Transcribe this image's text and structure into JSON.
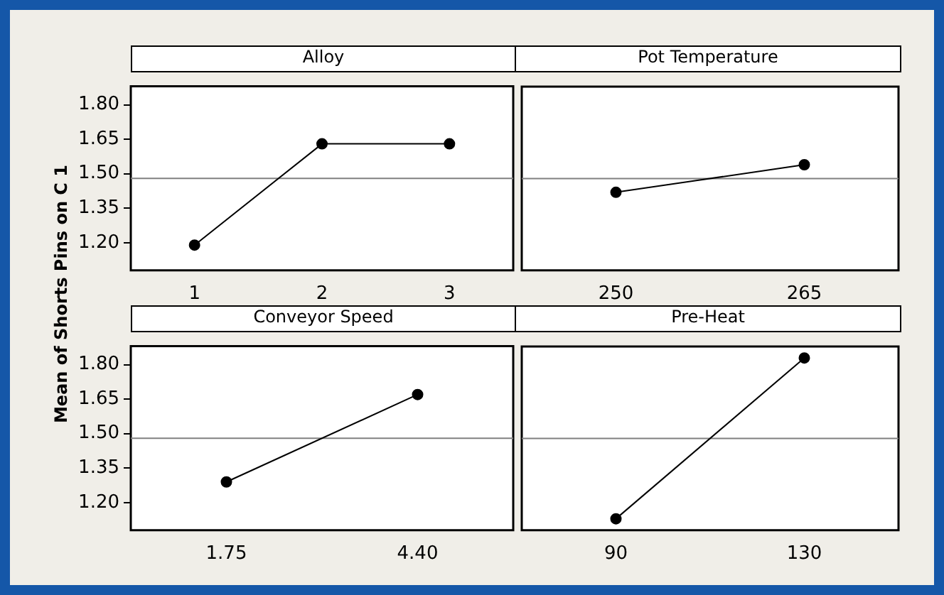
{
  "chart_data": [
    {
      "type": "line",
      "title": "Alloy",
      "ylabel": "Mean of Shorts Pins on C 1",
      "categories": [
        "1",
        "2",
        "3"
      ],
      "values": [
        1.19,
        1.63,
        1.63
      ],
      "color": "#000000",
      "marker": "circle",
      "ylim": [
        1.08,
        1.88
      ],
      "yticks": [
        {
          "value": 1.2,
          "label": "1.20"
        },
        {
          "value": 1.35,
          "label": "1.35"
        },
        {
          "value": 1.5,
          "label": "1.50"
        },
        {
          "value": 1.65,
          "label": "1.65"
        },
        {
          "value": 1.8,
          "label": "1.80"
        }
      ],
      "ref_lines": [
        {
          "axis": "y",
          "value": 1.48,
          "color": "#808080"
        }
      ],
      "grid": false
    },
    {
      "type": "line",
      "title": "Pot Temperature",
      "categories": [
        "250",
        "265"
      ],
      "values": [
        1.42,
        1.54
      ],
      "color": "#000000",
      "marker": "circle",
      "ylim": [
        1.08,
        1.88
      ],
      "tick_labels": "x",
      "ref_lines": [
        {
          "axis": "y",
          "value": 1.48,
          "color": "#808080"
        }
      ],
      "grid": false
    },
    {
      "type": "line",
      "title": "Conveyor Speed",
      "categories": [
        "1.75",
        "4.40"
      ],
      "values": [
        1.29,
        1.67
      ],
      "color": "#000000",
      "marker": "circle",
      "ylim": [
        1.08,
        1.88
      ],
      "yticks": [
        {
          "value": 1.2,
          "label": "1.20"
        },
        {
          "value": 1.35,
          "label": "1.35"
        },
        {
          "value": 1.5,
          "label": "1.50"
        },
        {
          "value": 1.65,
          "label": "1.65"
        },
        {
          "value": 1.8,
          "label": "1.80"
        }
      ],
      "ref_lines": [
        {
          "axis": "y",
          "value": 1.48,
          "color": "#808080"
        }
      ],
      "grid": false
    },
    {
      "type": "line",
      "title": "Pre-Heat",
      "categories": [
        "90",
        "130"
      ],
      "values": [
        1.13,
        1.83
      ],
      "color": "#000000",
      "marker": "circle",
      "ylim": [
        1.08,
        1.88
      ],
      "tick_labels": "x",
      "ref_lines": [
        {
          "axis": "y",
          "value": 1.48,
          "color": "#808080"
        }
      ],
      "grid": false
    }
  ]
}
